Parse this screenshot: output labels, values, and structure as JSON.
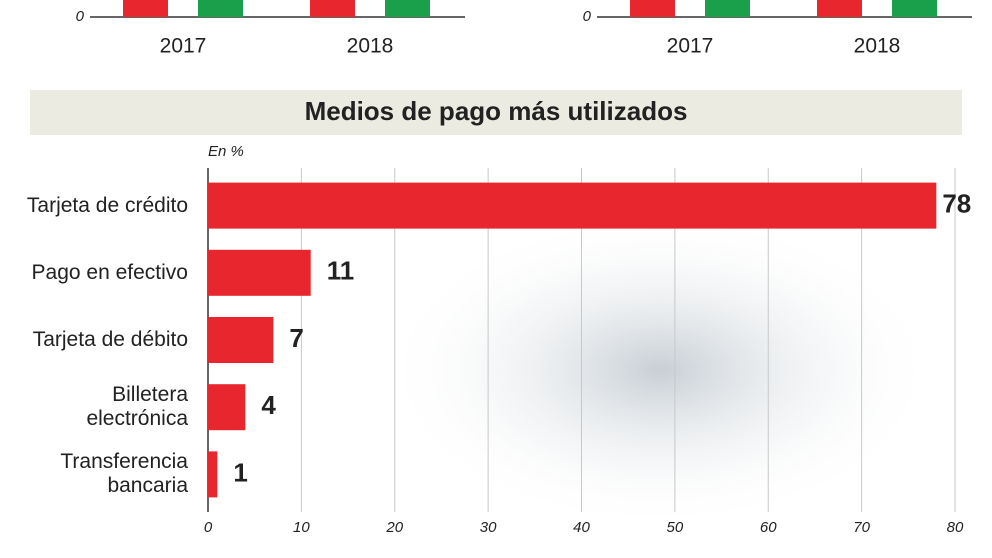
{
  "chart_data": [
    {
      "type": "bar-stub",
      "categories": [
        "2017",
        "2018"
      ],
      "yticks": [
        0
      ],
      "colors": [
        "#e8262d",
        "#1aa04a"
      ]
    },
    {
      "type": "bar-stub",
      "categories": [
        "2017",
        "2018"
      ],
      "yticks": [
        0
      ],
      "colors": [
        "#e8262d",
        "#1aa04a"
      ]
    },
    {
      "type": "hbar",
      "title": "Medios de pago más utilizados",
      "subtitle": "En %",
      "categories": [
        "Tarjeta de crédito",
        "Pago en efectivo",
        "Tarjeta de débito",
        "Billetera electrónica",
        "Transferencia bancaria"
      ],
      "values": [
        78,
        11,
        7,
        4,
        1
      ],
      "color": "#e8262d",
      "xlim": [
        0,
        80
      ],
      "xticks": [
        0,
        10,
        20,
        30,
        40,
        50,
        60,
        70,
        80
      ],
      "grid": true
    }
  ]
}
